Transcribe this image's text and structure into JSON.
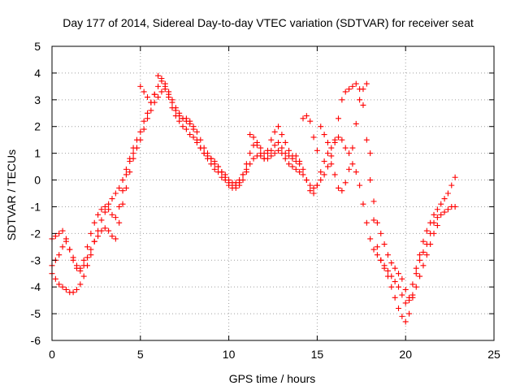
{
  "chart_data": {
    "type": "scatter",
    "title": "Day 177 of 2014, Sidereal Day-to-day VTEC variation (SDTVAR) for receiver seat",
    "xlabel": "GPS time / hours",
    "ylabel": "SDTVAR / TECUs",
    "xlim": [
      0,
      25
    ],
    "ylim": [
      -6,
      5
    ],
    "xticks": [
      "0",
      "5",
      "10",
      "15",
      "20",
      "25"
    ],
    "yticks": [
      "-6",
      "-5",
      "-4",
      "-3",
      "-2",
      "-1",
      "0",
      "1",
      "2",
      "3",
      "4",
      "5"
    ],
    "grid": true,
    "marker": "plus",
    "color": "#ff0000",
    "series": [
      {
        "x": [
          0.0,
          0.2,
          0.4,
          0.6,
          0.8,
          1.0,
          1.2,
          1.4,
          1.6,
          1.8,
          2.0,
          2.2,
          2.4,
          2.6,
          2.8,
          3.0,
          3.2,
          3.4,
          3.6,
          3.8,
          4.0,
          4.2,
          4.4,
          4.6,
          4.8,
          5.0,
          5.2,
          5.4,
          5.6,
          5.8,
          6.0,
          6.2,
          6.4,
          6.6,
          6.8,
          7.0,
          7.2,
          7.4,
          7.6,
          7.8,
          8.0,
          8.2,
          8.4,
          8.6,
          8.8,
          9.0,
          9.2,
          9.4,
          9.6,
          9.8,
          10.0,
          10.2,
          10.4,
          10.6,
          10.8,
          11.0,
          11.2,
          11.4,
          11.6,
          11.8,
          12.0,
          12.2,
          12.4,
          12.6,
          12.8,
          13.0,
          13.2,
          13.4,
          13.6,
          13.8,
          14.0,
          14.2,
          14.4,
          14.6,
          14.8,
          15.0,
          15.2,
          15.4,
          15.6,
          15.8,
          16.0,
          16.2,
          16.4,
          16.6,
          16.8,
          17.0,
          17.2,
          17.4,
          17.6,
          17.8,
          18.0,
          18.2,
          18.4,
          18.6,
          18.8,
          19.0,
          19.2,
          19.4,
          19.6,
          19.8,
          20.0,
          20.2,
          20.4,
          20.6,
          20.8,
          21.0,
          21.2,
          21.4,
          21.6,
          21.8,
          22.0,
          22.2,
          22.4,
          22.6,
          22.8
        ],
        "y": [
          -3.5,
          -3.7,
          -3.9,
          -4.0,
          -4.1,
          -4.2,
          -4.2,
          -4.1,
          -3.9,
          -3.6,
          -3.2,
          -2.8,
          -2.3,
          -1.9,
          -1.5,
          -1.2,
          -0.9,
          -0.7,
          -0.5,
          -0.3,
          0.0,
          0.4,
          0.8,
          1.2,
          1.5,
          1.8,
          2.2,
          2.5,
          2.9,
          3.2,
          3.5,
          3.7,
          3.6,
          3.3,
          3.0,
          2.7,
          2.5,
          2.3,
          2.2,
          2.1,
          2.0,
          1.8,
          1.5,
          1.2,
          1.0,
          0.8,
          0.6,
          0.5,
          0.3,
          0.2,
          0.0,
          -0.1,
          -0.1,
          0.0,
          0.2,
          0.4,
          0.6,
          0.8,
          0.9,
          0.9,
          0.8,
          0.8,
          0.9,
          1.0,
          1.1,
          1.0,
          0.8,
          0.6,
          0.5,
          0.4,
          0.3,
          0.2,
          0.0,
          -0.2,
          -0.3,
          -0.2,
          0.0,
          0.2,
          0.5,
          0.9,
          1.5,
          2.3,
          3.0,
          3.3,
          3.4,
          3.5,
          3.6,
          3.4,
          2.8,
          1.5,
          0.0,
          -1.5,
          -2.5,
          -3.0,
          -3.3,
          -3.6,
          -4.0,
          -4.4,
          -4.8,
          -5.1,
          -5.3,
          -5.0,
          -4.4,
          -3.5,
          -2.8,
          -2.3,
          -1.9,
          -1.6,
          -1.3,
          -1.1,
          -0.9,
          -0.7,
          -0.5,
          -0.2,
          0.1
        ]
      },
      {
        "x": [
          0.0,
          0.2,
          0.4,
          0.6,
          0.8,
          1.0,
          1.2,
          1.4,
          1.6,
          1.8,
          2.0,
          2.2,
          2.4,
          2.6,
          2.8,
          3.0,
          3.2,
          3.4,
          3.6,
          3.8,
          4.0,
          4.2,
          4.4,
          4.6,
          4.8,
          5.0,
          5.2,
          5.4,
          5.6,
          5.8,
          6.0,
          6.2,
          6.4,
          6.6,
          6.8,
          7.0,
          7.2,
          7.4,
          7.6,
          7.8,
          8.0,
          8.2,
          8.4,
          8.6,
          8.8,
          9.0,
          9.2,
          9.4,
          9.6,
          9.8,
          10.0,
          10.2,
          10.4,
          10.6,
          10.8,
          11.0,
          11.2,
          11.4,
          11.6,
          11.8,
          12.0,
          12.2,
          12.4,
          12.6,
          12.8,
          13.0,
          13.2,
          13.4,
          13.6,
          13.8,
          14.0,
          14.2,
          14.4,
          14.6,
          14.8,
          15.0,
          15.2,
          15.4,
          15.6,
          15.8,
          16.0,
          16.2,
          16.4,
          16.6,
          16.8,
          17.0,
          17.2,
          17.4,
          17.6,
          17.8,
          18.0,
          18.2,
          18.4,
          18.6,
          18.8,
          19.0,
          19.2,
          19.4,
          19.6,
          19.8,
          20.0,
          20.2,
          20.4,
          20.6,
          20.8,
          21.0,
          21.2,
          21.4,
          21.6,
          21.8,
          22.0,
          22.2,
          22.4,
          22.6,
          22.8
        ],
        "y": [
          -3.2,
          -3.0,
          -2.8,
          -2.5,
          -2.3,
          -2.6,
          -2.9,
          -3.2,
          -3.3,
          -3.0,
          -2.5,
          -2.0,
          -1.6,
          -1.3,
          -1.1,
          -1.0,
          -1.1,
          -1.3,
          -1.4,
          -1.0,
          -0.4,
          0.2,
          0.7,
          1.0,
          1.2,
          1.5,
          1.9,
          2.3,
          2.6,
          2.9,
          3.1,
          3.3,
          3.4,
          3.2,
          2.9,
          2.6,
          2.4,
          2.3,
          2.3,
          2.2,
          1.9,
          1.5,
          1.2,
          1.0,
          0.9,
          0.8,
          0.7,
          0.5,
          0.3,
          0.1,
          -0.1,
          -0.2,
          -0.2,
          -0.1,
          0.2,
          0.6,
          1.0,
          1.3,
          1.4,
          1.2,
          1.0,
          1.0,
          1.1,
          1.3,
          1.4,
          1.2,
          1.0,
          0.9,
          0.8,
          0.7,
          0.6,
          0.4,
          0.0,
          -0.4,
          -0.5,
          -0.2,
          0.3,
          0.7,
          1.0,
          1.2,
          1.4,
          1.6,
          1.5,
          1.2,
          1.0,
          0.6,
          0.3,
          -0.2,
          -0.9,
          -1.6,
          -2.2,
          -2.6,
          -2.8,
          -3.0,
          -3.2,
          -3.4,
          -3.6,
          -3.8,
          -4.0,
          -4.3,
          -4.6,
          -4.5,
          -3.9,
          -3.3,
          -3.0,
          -2.7,
          -2.4,
          -2.0,
          -1.6,
          -1.4,
          -1.3,
          -1.2,
          -1.1,
          -1.0,
          -1.0
        ]
      },
      {
        "x": [
          0.0,
          0.2,
          0.4,
          0.6,
          0.8,
          1.0,
          1.2,
          1.4,
          1.6,
          1.8,
          2.0,
          2.2,
          2.4,
          2.6,
          2.8,
          3.0,
          3.2,
          3.4,
          3.6,
          3.8,
          4.0,
          4.2,
          4.4,
          4.6,
          4.8,
          5.0,
          5.2,
          5.4,
          5.6,
          5.8,
          6.0,
          6.2,
          6.4,
          6.6,
          6.8,
          7.0,
          7.2,
          7.4,
          7.6,
          7.8,
          8.0,
          8.2,
          8.4,
          8.6,
          8.8,
          9.0,
          9.2,
          9.4,
          9.6,
          9.8,
          10.0,
          10.2,
          10.4,
          10.6,
          10.8,
          11.0,
          11.2,
          11.4,
          11.6,
          11.8,
          12.0,
          12.2,
          12.4,
          12.6,
          12.8,
          13.0,
          13.2,
          13.4,
          13.6,
          13.8,
          14.0,
          14.2,
          14.4,
          14.6,
          14.8,
          15.0,
          15.2,
          15.4,
          15.6,
          15.8,
          16.0,
          16.2,
          16.4,
          16.6,
          16.8,
          17.0,
          17.2,
          17.4,
          17.6,
          17.8,
          18.0,
          18.2,
          18.4,
          18.6,
          18.8,
          19.0,
          19.2,
          19.4,
          19.6,
          19.8,
          20.0,
          20.2,
          20.4,
          20.6,
          20.8,
          21.0,
          21.2,
          21.4,
          21.6,
          21.8
        ],
        "y": [
          -2.2,
          -2.1,
          -2.0,
          -1.9,
          -2.2,
          -2.6,
          -3.0,
          -3.3,
          -3.4,
          -3.2,
          -2.9,
          -2.6,
          -2.3,
          -2.1,
          -1.9,
          -1.8,
          -1.9,
          -2.1,
          -2.2,
          -1.6,
          -0.9,
          -0.3,
          0.3,
          0.8,
          1.2,
          3.5,
          3.3,
          3.1,
          2.9,
          3.2,
          3.9,
          3.8,
          3.5,
          3.1,
          2.7,
          2.4,
          2.2,
          2.0,
          1.9,
          1.7,
          1.6,
          1.4,
          1.2,
          1.0,
          0.8,
          0.6,
          0.4,
          0.3,
          0.1,
          0.0,
          -0.2,
          -0.3,
          -0.3,
          -0.2,
          0.0,
          0.3,
          1.7,
          1.6,
          1.3,
          1.0,
          0.8,
          1.1,
          1.5,
          1.8,
          2.0,
          1.7,
          1.4,
          1.1,
          0.9,
          0.9,
          0.7,
          2.3,
          2.4,
          2.2,
          1.6,
          1.1,
          2.0,
          1.7,
          1.4,
          0.6,
          0.2,
          -0.3,
          -0.4,
          -0.1,
          0.4,
          1.2,
          2.1,
          3.0,
          3.4,
          3.6,
          1.0,
          -0.8,
          -1.6,
          -2.0,
          -2.4,
          -2.8,
          -3.1,
          -3.3,
          -3.5,
          -3.7,
          -4.1,
          -4.4,
          -4.3,
          -4.0,
          -3.6,
          -3.2,
          -2.8,
          -2.4,
          -2.0,
          -1.7
        ]
      }
    ]
  }
}
